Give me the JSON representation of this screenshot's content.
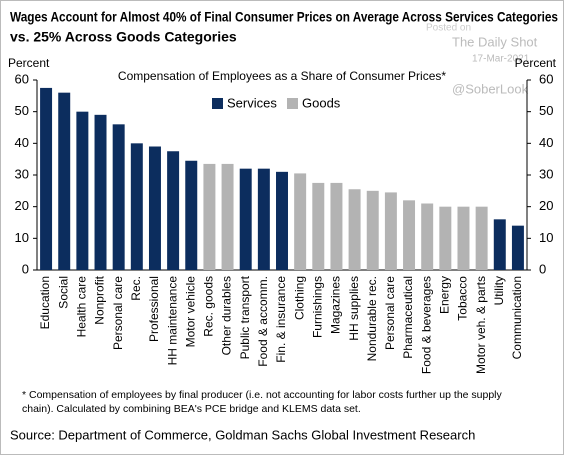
{
  "chart_data": {
    "type": "bar",
    "title": [
      "Wages Account for Almost 40% of Final Consumer Prices on Average Across Services Categories",
      "vs. 25% Across Goods Categories"
    ],
    "subtitle": "Compensation  of Employees as a Share of Consumer Prices*",
    "y_label": "Percent",
    "y2_label": "Percent",
    "watermark": [
      "Posted on",
      "The Daily Shot",
      "17-Mar-2021",
      "@SoberLook"
    ],
    "footnote": [
      "* Compensation  of employees by final producer  (i.e. not accounting for labor costs further up the supply",
      "chain). Calculated  by combining  BEA's PCE  bridge and KLEMS  data set."
    ],
    "source": "Source: Department of Commerce, Goldman Sachs Global Investment Research",
    "categories": [
      "Education",
      "Social",
      "Health care",
      "Nonprofit",
      "Personal care",
      "Rec.",
      "Professional",
      "HH maintenance",
      "Motor vehicle",
      "Rec. goods",
      "Other durables",
      "Public transport",
      "Food & accomm.",
      "Fin. & insurance",
      "Clothing",
      "Furnishings",
      "Magazines",
      "HH supplies",
      "Nondurable rec.",
      "Personal care",
      "Pharmaceutical",
      "Food & beverages",
      "Energy",
      "Tobacco",
      "Motor veh. & parts",
      "Utility",
      "Communication"
    ],
    "series": [
      {
        "name": "Services",
        "color": "#0c2d5e",
        "values": [
          57.5,
          56,
          50,
          49,
          46,
          40,
          39,
          37.5,
          34.5,
          null,
          null,
          32,
          32,
          31,
          null,
          null,
          null,
          null,
          null,
          null,
          null,
          null,
          null,
          null,
          null,
          16,
          14
        ]
      },
      {
        "name": "Goods",
        "color": "#b3b3b3",
        "values": [
          null,
          null,
          null,
          null,
          null,
          null,
          null,
          null,
          null,
          33.5,
          33.5,
          null,
          null,
          null,
          30.5,
          27.5,
          27.5,
          25.5,
          25,
          24.5,
          22,
          21,
          20,
          20,
          20,
          null,
          null
        ]
      }
    ],
    "ylim": [
      0,
      60
    ],
    "yticks": [
      0,
      10,
      20,
      30,
      40,
      50,
      60
    ],
    "y2lim": [
      0,
      60
    ],
    "y2ticks": [
      0,
      10,
      20,
      30,
      40,
      50,
      60
    ]
  }
}
